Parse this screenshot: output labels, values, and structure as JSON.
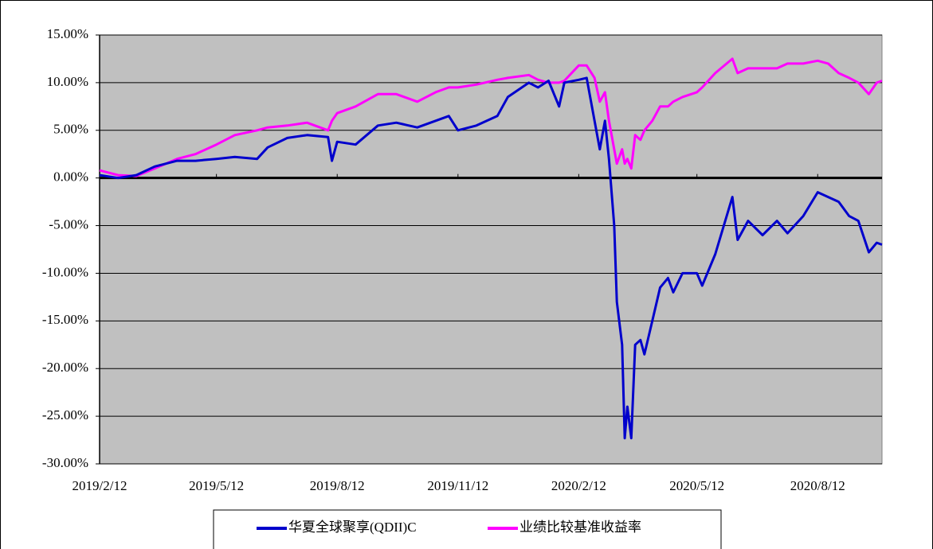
{
  "chart_data": {
    "type": "line",
    "x": [
      "2019/2/12",
      "2019/2/26",
      "2019/3/12",
      "2019/3/26",
      "2019/4/12",
      "2019/4/26",
      "2019/5/12",
      "2019/5/26",
      "2019/6/12",
      "2019/6/20",
      "2019/7/5",
      "2019/7/20",
      "2019/8/5",
      "2019/8/8",
      "2019/8/12",
      "2019/8/26",
      "2019/9/12",
      "2019/9/26",
      "2019/10/12",
      "2019/10/26",
      "2019/11/5",
      "2019/11/12",
      "2019/11/26",
      "2019/12/12",
      "2019/12/20",
      "2020/1/5",
      "2020/1/12",
      "2020/1/20",
      "2020/1/28",
      "2020/2/1",
      "2020/2/12",
      "2020/2/18",
      "2020/2/24",
      "2020/2/28",
      "2020/3/3",
      "2020/3/6",
      "2020/3/10",
      "2020/3/12",
      "2020/3/16",
      "2020/3/18",
      "2020/3/20",
      "2020/3/23",
      "2020/3/26",
      "2020/3/30",
      "2020/4/2",
      "2020/4/8",
      "2020/4/14",
      "2020/4/20",
      "2020/4/24",
      "2020/5/1",
      "2020/5/12",
      "2020/5/16",
      "2020/5/26",
      "2020/6/8",
      "2020/6/12",
      "2020/6/20",
      "2020/7/1",
      "2020/7/12",
      "2020/7/20",
      "2020/8/1",
      "2020/8/12",
      "2020/8/20",
      "2020/8/28",
      "2020/9/5",
      "2020/9/12",
      "2020/9/20",
      "2020/9/26",
      "2020/9/30"
    ],
    "series": [
      {
        "name": "华夏全球聚享(QDII)C",
        "color": "#0000cc",
        "values": [
          0.3,
          0,
          0.3,
          1.2,
          1.8,
          1.8,
          2.0,
          2.2,
          2.0,
          3.2,
          4.2,
          4.5,
          4.3,
          1.8,
          3.8,
          3.5,
          5.5,
          5.8,
          5.3,
          6.0,
          6.5,
          5.0,
          5.5,
          6.5,
          8.5,
          10.0,
          9.5,
          10.2,
          7.5,
          10.0,
          10.3,
          10.5,
          6.0,
          3.0,
          6.0,
          2.0,
          -5.0,
          -13.0,
          -17.5,
          -27.3,
          -24.0,
          -27.3,
          -17.5,
          -17.0,
          -18.5,
          -15.0,
          -11.5,
          -10.5,
          -12.0,
          -10.0,
          -10.0,
          -11.3,
          -8.0,
          -2.0,
          -6.5,
          -4.5,
          -6.0,
          -4.5,
          -5.8,
          -4.0,
          -1.5,
          -2.0,
          -2.5,
          -4.0,
          -4.5,
          -7.8,
          -6.8,
          -7.0
        ]
      },
      {
        "name": "业绩比较基准收益率",
        "color": "#ff00ff",
        "values": [
          0.8,
          0.3,
          0.2,
          1.0,
          2.0,
          2.5,
          3.5,
          4.5,
          5.0,
          5.3,
          5.5,
          5.8,
          5.0,
          6.0,
          6.8,
          7.5,
          8.8,
          8.8,
          8.0,
          9.0,
          9.5,
          9.5,
          9.8,
          10.3,
          10.5,
          10.8,
          10.3,
          10.0,
          10.0,
          10.2,
          11.8,
          11.8,
          10.5,
          8.0,
          9.0,
          6.0,
          3.0,
          1.5,
          3.0,
          1.5,
          2.0,
          1.0,
          4.5,
          4.0,
          5.0,
          6.0,
          7.5,
          7.5,
          8.0,
          8.5,
          9.0,
          9.5,
          11.0,
          12.5,
          11.0,
          11.5,
          11.5,
          11.5,
          12.0,
          12.0,
          12.3,
          12.0,
          11.0,
          10.5,
          10.0,
          8.8,
          10.0,
          10.2
        ]
      }
    ],
    "xlim": [
      "2019/2/12",
      "2020/9/30"
    ],
    "xticks": [
      "2019/2/12",
      "2019/5/12",
      "2019/8/12",
      "2019/11/12",
      "2020/2/12",
      "2020/5/12",
      "2020/8/12"
    ],
    "ylim": [
      -30,
      15
    ],
    "yticks": [
      {
        "value": 15,
        "label": "15.00%"
      },
      {
        "value": 10,
        "label": "10.00%"
      },
      {
        "value": 5,
        "label": "5.00%"
      },
      {
        "value": 0,
        "label": "0.00%"
      },
      {
        "value": -5,
        "label": "-5.00%"
      },
      {
        "value": -10,
        "label": "-10.00%"
      },
      {
        "value": -15,
        "label": "-15.00%"
      },
      {
        "value": -20,
        "label": "-20.00%"
      },
      {
        "value": -25,
        "label": "-25.00%"
      },
      {
        "value": -30,
        "label": "-30.00%"
      }
    ],
    "grid": true,
    "legend": "bottom"
  }
}
